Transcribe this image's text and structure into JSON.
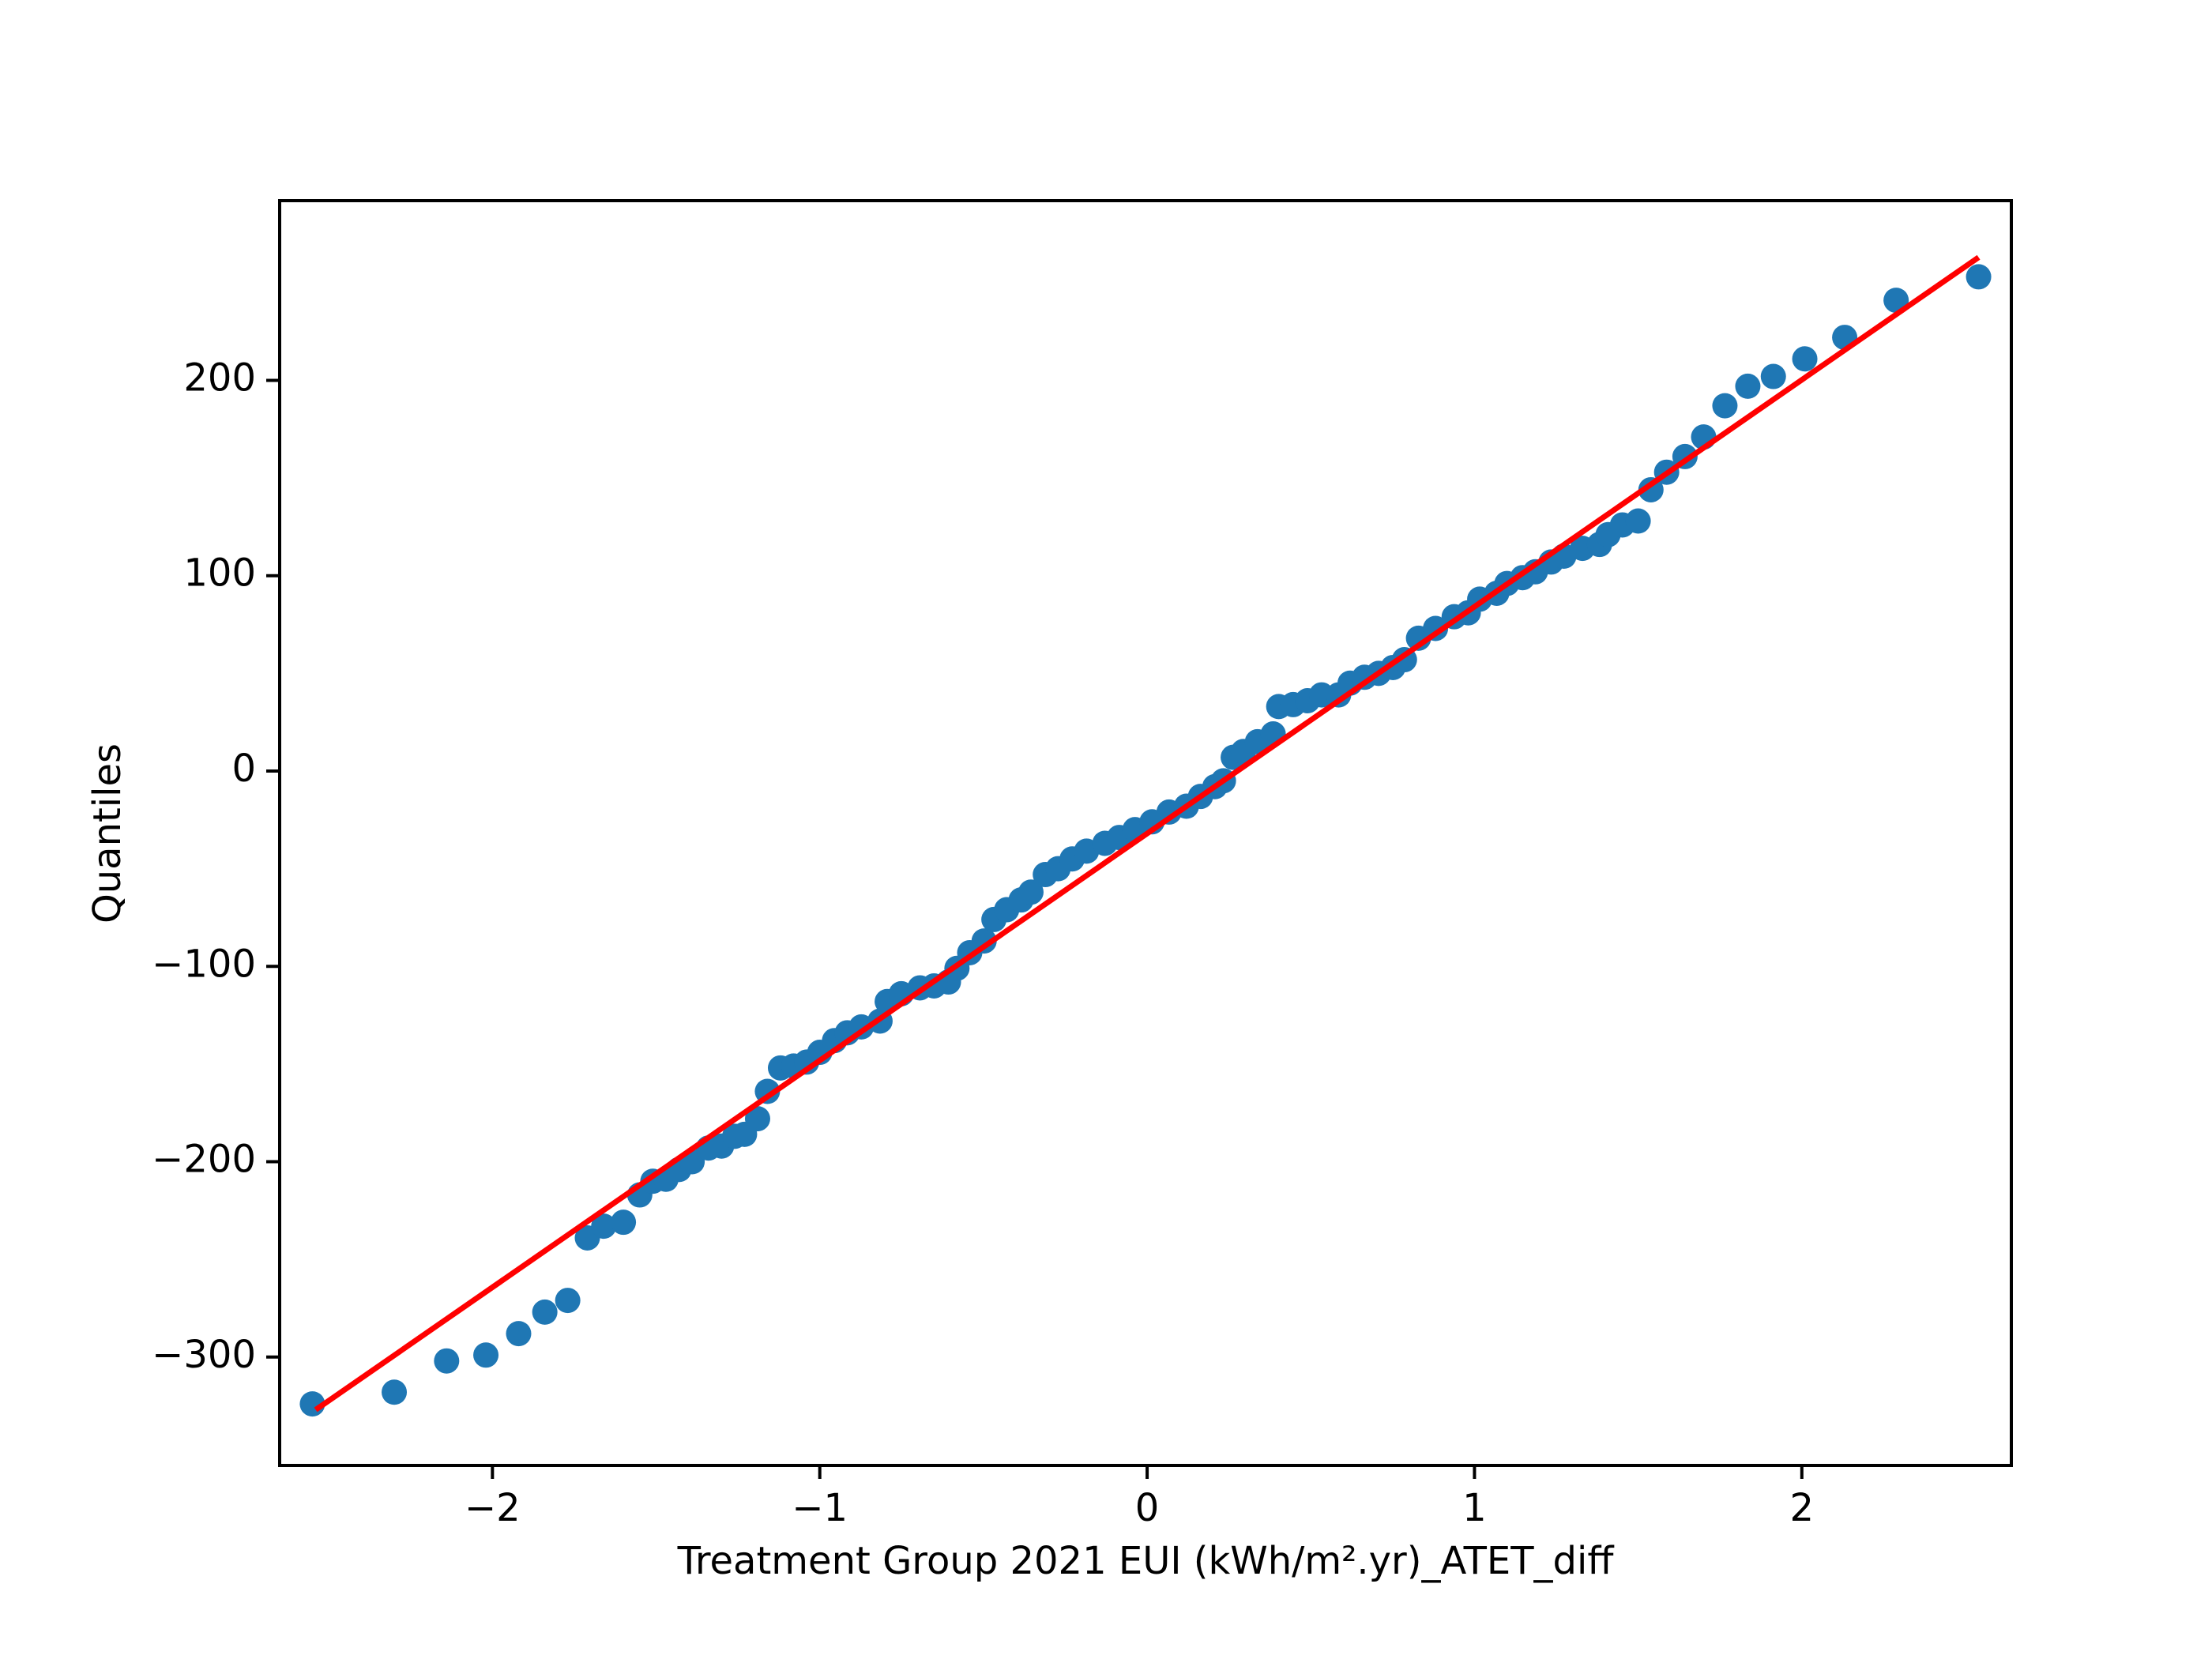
{
  "chart_data": {
    "type": "qqplot",
    "xlabel": "Treatment Group 2021 EUI (kWh/m².yr)_ATET_diff",
    "ylabel": "Quantiles",
    "xlim": [
      -2.65,
      2.64
    ],
    "ylim": [
      -355.5,
      292
    ],
    "xticks": [
      {
        "value": -2,
        "label": "−2"
      },
      {
        "value": -1,
        "label": "−1"
      },
      0,
      1,
      2
    ],
    "yticks": [
      {
        "value": -300,
        "label": "−300"
      },
      {
        "value": -200,
        "label": "−200"
      },
      {
        "value": -100,
        "label": "−100"
      },
      0,
      100,
      200
    ],
    "points": {
      "color": "#1f77b4",
      "x": [
        -2.55,
        -2.3,
        -2.14,
        -2.02,
        -1.92,
        -1.84,
        -1.77,
        -1.71,
        -1.66,
        -1.6,
        -1.55,
        -1.51,
        -1.47,
        -1.43,
        -1.39,
        -1.34,
        -1.3,
        -1.26,
        -1.23,
        -1.19,
        -1.16,
        -1.12,
        -1.08,
        -1.04,
        -1.0,
        -0.955,
        -0.916,
        -0.873,
        -0.816,
        -0.794,
        -0.751,
        -0.694,
        -0.651,
        -0.607,
        -0.581,
        -0.542,
        -0.498,
        -0.468,
        -0.429,
        -0.385,
        -0.355,
        -0.311,
        -0.272,
        -0.229,
        -0.185,
        -0.129,
        -0.085,
        -0.037,
        0.015,
        0.067,
        0.12,
        0.163,
        0.207,
        0.233,
        0.263,
        0.294,
        0.337,
        0.385,
        0.402,
        0.446,
        0.49,
        0.533,
        0.585,
        0.62,
        0.664,
        0.707,
        0.751,
        0.786,
        0.829,
        0.881,
        0.938,
        0.981,
        1.016,
        1.068,
        1.099,
        1.147,
        1.186,
        1.234,
        1.273,
        1.33,
        1.382,
        1.408,
        1.452,
        1.5,
        1.539,
        1.587,
        1.643,
        1.7,
        1.765,
        1.835,
        1.913,
        2.009,
        2.131,
        2.288,
        2.54
      ],
      "values": [
        -324,
        -318,
        -302,
        -299,
        -288,
        -277,
        -271,
        -239,
        -233,
        -231,
        -217,
        -210,
        -209,
        -204,
        -200,
        -193,
        -192,
        -187,
        -186,
        -178,
        -164,
        -152,
        -151,
        -149,
        -144,
        -138,
        -134,
        -131,
        -128,
        -118,
        -114,
        -111,
        -110,
        -108,
        -101,
        -93,
        -87,
        -76,
        -71,
        -66,
        -62,
        -53,
        -50,
        -45,
        -41,
        -37,
        -34,
        -30,
        -26,
        -21,
        -18,
        -13,
        -8,
        -5,
        7,
        10,
        15,
        19,
        33,
        34,
        36,
        39,
        39,
        45,
        48,
        50,
        53,
        57,
        68,
        73,
        79,
        81,
        88,
        91,
        96,
        99,
        102,
        107,
        110,
        114,
        116,
        121,
        126,
        128,
        144,
        153,
        161,
        171,
        187,
        197,
        202,
        211,
        222,
        241,
        253
      ]
    },
    "fit_line": {
      "color": "#ff0000",
      "x": [
        -2.54,
        2.54
      ],
      "values": [
        -327,
        263
      ]
    }
  }
}
